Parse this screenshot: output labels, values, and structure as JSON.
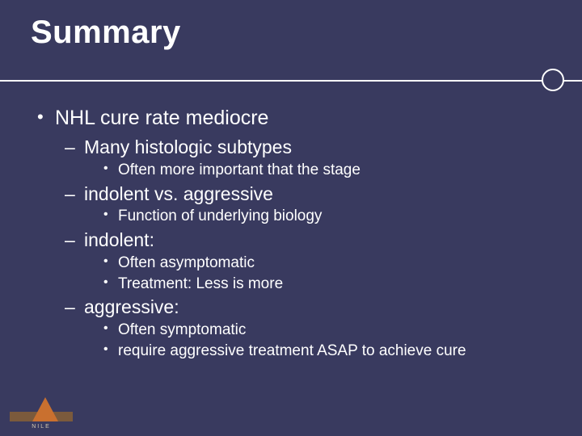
{
  "colors": {
    "background": "#393a5f",
    "text": "#ffffff",
    "divider": "#ffffff",
    "logo_bar": "#7b5a3c",
    "logo_tri": "#c9702f",
    "logo_text": "#d6c9b0"
  },
  "title": "Summary",
  "title_fontsize": 40,
  "bullet_l1_fontsize": 25,
  "bullet_l2_fontsize": 23,
  "bullet_l3_fontsize": 19,
  "content": {
    "l1_0": "NHL cure rate mediocre",
    "l2_0": "Many histologic subtypes",
    "l3_0_0": "Often more important that the stage",
    "l2_1": "indolent vs. aggressive",
    "l3_1_0": "Function of underlying biology",
    "l2_2": "indolent:",
    "l3_2_0": "Often asymptomatic",
    "l3_2_1": "Treatment: Less is more",
    "l2_3": "aggressive:",
    "l3_3_0": "Often symptomatic",
    "l3_3_1": "require aggressive treatment ASAP to achieve cure"
  },
  "logo": {
    "text": "NILE"
  }
}
